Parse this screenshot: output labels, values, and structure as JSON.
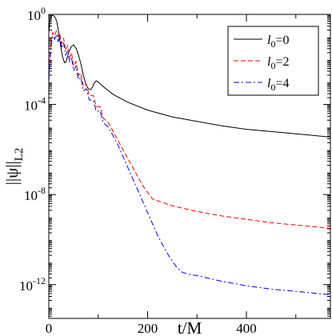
{
  "chart_data": {
    "type": "line",
    "title": "",
    "xlabel": "t/M",
    "ylabel": "||ψ||",
    "ylabel_sub": "L2",
    "x_scale": "linear",
    "y_scale": "log",
    "xlim": [
      0,
      570
    ],
    "ylim_exp": [
      -13.5,
      0
    ],
    "x_ticks": [
      0,
      200,
      400
    ],
    "x_tick_labels": [
      "0",
      "200",
      "400"
    ],
    "y_ticks_exp": [
      0,
      -4,
      -8,
      -12
    ],
    "y_tick_bases": [
      "10",
      "10",
      "10",
      "10"
    ],
    "y_tick_exps": [
      "0",
      "-4",
      "-8",
      "-12"
    ],
    "legend_position": "top-right",
    "series": [
      {
        "name_prefix": "l",
        "name_sub": "0",
        "name_suffix": "=0",
        "color": "#000000",
        "dash": "solid",
        "points": [
          [
            0,
            -0.8
          ],
          [
            3,
            -0.2
          ],
          [
            6,
            -0.05
          ],
          [
            9,
            -0.05
          ],
          [
            12,
            -0.1
          ],
          [
            16,
            -0.3
          ],
          [
            20,
            -0.8
          ],
          [
            24,
            -1.4
          ],
          [
            28,
            -1.9
          ],
          [
            32,
            -2.15
          ],
          [
            35,
            -2.1
          ],
          [
            40,
            -1.7
          ],
          [
            45,
            -1.45
          ],
          [
            50,
            -1.35
          ],
          [
            55,
            -1.5
          ],
          [
            60,
            -1.8
          ],
          [
            65,
            -2.2
          ],
          [
            70,
            -2.7
          ],
          [
            75,
            -3.1
          ],
          [
            80,
            -3.3
          ],
          [
            84,
            -3.35
          ],
          [
            88,
            -3.25
          ],
          [
            92,
            -3.05
          ],
          [
            96,
            -2.95
          ],
          [
            100,
            -3.0
          ],
          [
            110,
            -3.2
          ],
          [
            130,
            -3.55
          ],
          [
            160,
            -3.9
          ],
          [
            200,
            -4.25
          ],
          [
            250,
            -4.55
          ],
          [
            300,
            -4.75
          ],
          [
            350,
            -4.95
          ],
          [
            400,
            -5.1
          ],
          [
            450,
            -5.2
          ],
          [
            500,
            -5.3
          ],
          [
            570,
            -5.45
          ]
        ]
      },
      {
        "name_prefix": "l",
        "name_sub": "0",
        "name_suffix": "=2",
        "color": "#ff0000",
        "dash": "6,3",
        "points": [
          [
            0,
            -2.5
          ],
          [
            4,
            -1.2
          ],
          [
            8,
            -0.8
          ],
          [
            12,
            -0.95
          ],
          [
            15,
            -0.75
          ],
          [
            19,
            -1.0
          ],
          [
            22,
            -0.85
          ],
          [
            26,
            -1.3
          ],
          [
            30,
            -1.05
          ],
          [
            34,
            -1.6
          ],
          [
            38,
            -1.4
          ],
          [
            42,
            -1.9
          ],
          [
            46,
            -1.7
          ],
          [
            50,
            -2.3
          ],
          [
            55,
            -2.1
          ],
          [
            60,
            -2.7
          ],
          [
            65,
            -2.6
          ],
          [
            70,
            -3.2
          ],
          [
            76,
            -3.1
          ],
          [
            82,
            -3.6
          ],
          [
            90,
            -3.6
          ],
          [
            96,
            -4.1
          ],
          [
            104,
            -4.1
          ],
          [
            110,
            -4.6
          ],
          [
            120,
            -4.8
          ],
          [
            128,
            -5.1
          ],
          [
            140,
            -5.6
          ],
          [
            150,
            -6.0
          ],
          [
            160,
            -6.4
          ],
          [
            170,
            -6.8
          ],
          [
            180,
            -7.2
          ],
          [
            190,
            -7.6
          ],
          [
            200,
            -7.9
          ],
          [
            205,
            -8.05
          ],
          [
            210,
            -8.2
          ],
          [
            250,
            -8.5
          ],
          [
            300,
            -8.75
          ],
          [
            350,
            -8.95
          ],
          [
            400,
            -9.1
          ],
          [
            450,
            -9.25
          ],
          [
            500,
            -9.35
          ],
          [
            570,
            -9.5
          ]
        ]
      },
      {
        "name_prefix": "l",
        "name_sub": "0",
        "name_suffix": "=4",
        "color": "#0000ff",
        "dash": "7,3,2,3",
        "points": [
          [
            0,
            -3.0
          ],
          [
            4,
            -1.5
          ],
          [
            8,
            -0.95
          ],
          [
            12,
            -1.1
          ],
          [
            15,
            -0.9
          ],
          [
            19,
            -1.2
          ],
          [
            22,
            -1.0
          ],
          [
            26,
            -1.5
          ],
          [
            30,
            -1.25
          ],
          [
            34,
            -1.8
          ],
          [
            38,
            -1.6
          ],
          [
            42,
            -2.1
          ],
          [
            46,
            -1.9
          ],
          [
            50,
            -2.5
          ],
          [
            55,
            -2.3
          ],
          [
            60,
            -2.9
          ],
          [
            65,
            -2.8
          ],
          [
            70,
            -3.4
          ],
          [
            76,
            -3.3
          ],
          [
            82,
            -3.8
          ],
          [
            90,
            -3.8
          ],
          [
            96,
            -4.3
          ],
          [
            104,
            -4.3
          ],
          [
            110,
            -4.8
          ],
          [
            120,
            -5.0
          ],
          [
            128,
            -5.3
          ],
          [
            140,
            -5.8
          ],
          [
            150,
            -6.3
          ],
          [
            160,
            -6.8
          ],
          [
            170,
            -7.3
          ],
          [
            180,
            -7.8
          ],
          [
            190,
            -8.3
          ],
          [
            200,
            -8.8
          ],
          [
            210,
            -9.3
          ],
          [
            220,
            -9.8
          ],
          [
            232,
            -10.3
          ],
          [
            245,
            -10.8
          ],
          [
            258,
            -11.2
          ],
          [
            270,
            -11.45
          ],
          [
            285,
            -11.55
          ],
          [
            300,
            -11.6
          ],
          [
            350,
            -11.85
          ],
          [
            400,
            -12.05
          ],
          [
            450,
            -12.2
          ],
          [
            500,
            -12.3
          ],
          [
            570,
            -12.45
          ]
        ]
      }
    ]
  }
}
